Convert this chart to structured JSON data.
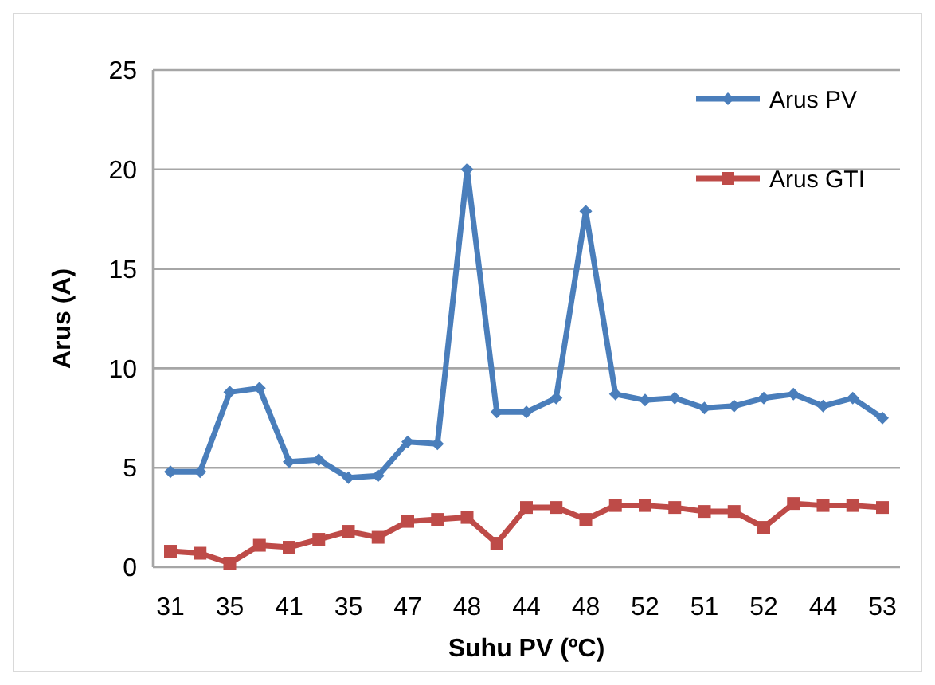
{
  "chart_data": {
    "type": "line",
    "xlabel": "Suhu PV (ºC)",
    "ylabel": "Arus (A)",
    "categories": [
      "31",
      null,
      "35",
      null,
      "41",
      null,
      "35",
      null,
      "47",
      null,
      "48",
      null,
      "44",
      null,
      "48",
      null,
      "52",
      null,
      "51",
      null,
      "52",
      null,
      "44",
      null,
      "53"
    ],
    "series": [
      {
        "name": "Arus PV",
        "color": "#4a7ebb",
        "marker": "diamond",
        "values": [
          4.8,
          4.8,
          8.8,
          9.0,
          5.3,
          5.4,
          4.5,
          4.6,
          6.3,
          6.2,
          20.0,
          7.8,
          7.8,
          8.5,
          17.9,
          8.7,
          8.4,
          8.5,
          8.0,
          8.1,
          8.5,
          8.7,
          8.1,
          8.5,
          7.5
        ]
      },
      {
        "name": "Arus GTI",
        "color": "#be4b48",
        "marker": "square",
        "values": [
          0.8,
          0.7,
          0.2,
          1.1,
          1.0,
          1.4,
          1.8,
          1.5,
          2.3,
          2.4,
          2.5,
          1.2,
          3.0,
          3.0,
          2.4,
          3.1,
          3.1,
          3.0,
          2.8,
          2.8,
          2.0,
          3.2,
          3.1,
          3.1,
          3.0
        ]
      }
    ],
    "ylim": [
      0,
      25
    ],
    "yticks": [
      0,
      5,
      10,
      15,
      20,
      25
    ],
    "grid": "y",
    "legend": "top right"
  }
}
